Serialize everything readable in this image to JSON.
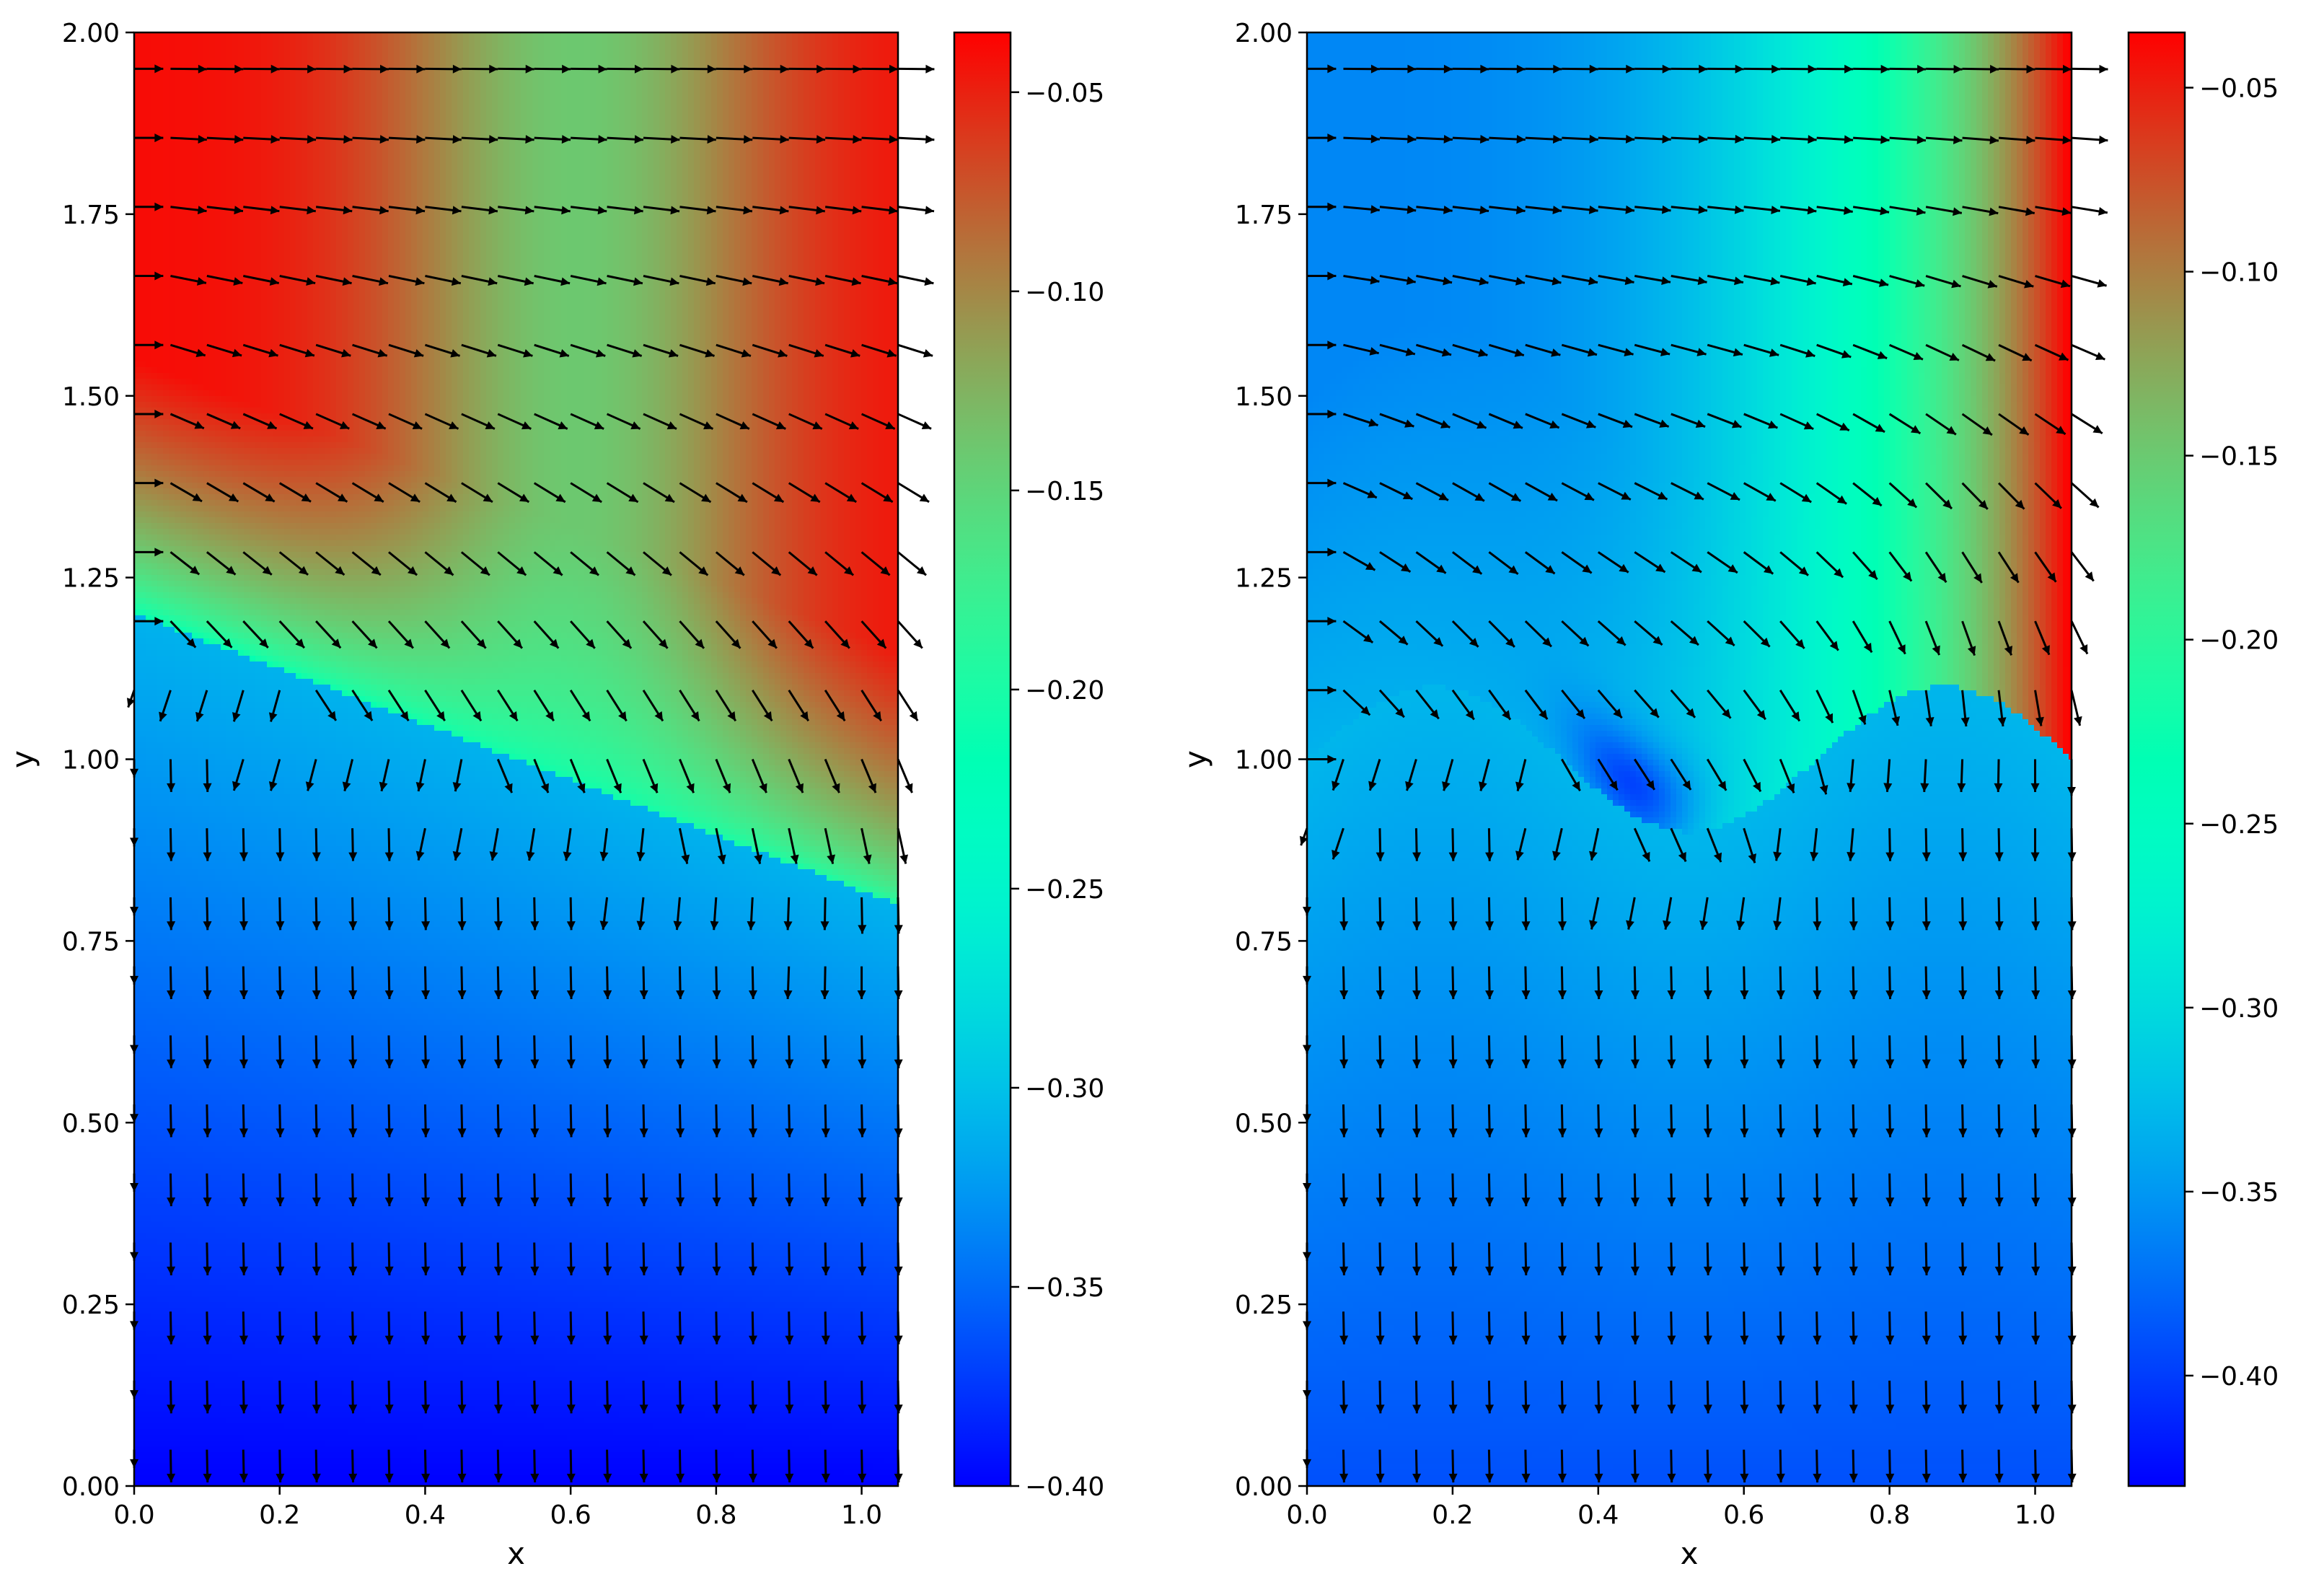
{
  "chart_data": [
    {
      "type": "heatmap",
      "title": "",
      "xlabel": "x",
      "ylabel": "y",
      "xlim": [
        0.0,
        1.05
      ],
      "ylim": [
        0.0,
        2.0
      ],
      "xticks": [
        "0.0",
        "0.2",
        "0.4",
        "0.6",
        "0.8",
        "1.0"
      ],
      "xtick_values": [
        0.0,
        0.2,
        0.4,
        0.6,
        0.8,
        1.0
      ],
      "yticks": [
        "0.00",
        "0.25",
        "0.50",
        "0.75",
        "1.00",
        "1.25",
        "1.50",
        "1.75",
        "2.00"
      ],
      "ytick_values": [
        0.0,
        0.25,
        0.5,
        0.75,
        1.0,
        1.25,
        1.5,
        1.75,
        2.0
      ],
      "colormap": "rainbow",
      "colorbar": {
        "range": [
          -0.4,
          -0.035
        ],
        "ticks": [
          "−0.05",
          "−0.10",
          "−0.15",
          "−0.20",
          "−0.25",
          "−0.30",
          "−0.35",
          "−0.40"
        ],
        "tick_values": [
          -0.05,
          -0.1,
          -0.15,
          -0.2,
          -0.25,
          -0.3,
          -0.35,
          -0.4
        ]
      },
      "interface": {
        "shape": "linear",
        "y_at_x0": 1.2,
        "y_at_xmax": 0.8
      },
      "field_description": "Lower fluid region: value increases linearly with y from -0.40 at y=0 to about -0.31 at interface. Upper region: high (-0.04) at top-left, about -0.14 in middle, -0.06 at right edge; green near interface.",
      "quiver": "Vectors point downward in lower region; in upper region near-horizontal rightward flow at top turning to down-right/downward approaching interface and right wall."
    },
    {
      "type": "heatmap",
      "title": "",
      "xlabel": "x",
      "ylabel": "y",
      "xlim": [
        0.0,
        1.05
      ],
      "ylim": [
        0.0,
        2.0
      ],
      "xticks": [
        "0.0",
        "0.2",
        "0.4",
        "0.6",
        "0.8",
        "1.0"
      ],
      "xtick_values": [
        0.0,
        0.2,
        0.4,
        0.6,
        0.8,
        1.0
      ],
      "yticks": [
        "0.00",
        "0.25",
        "0.50",
        "0.75",
        "1.00",
        "1.25",
        "1.50",
        "1.75",
        "2.00"
      ],
      "ytick_values": [
        0.0,
        0.25,
        0.5,
        0.75,
        1.0,
        1.25,
        1.5,
        1.75,
        2.0
      ],
      "colormap": "rainbow",
      "colorbar": {
        "range": [
          -0.43,
          -0.035
        ],
        "ticks": [
          "−0.05",
          "−0.10",
          "−0.15",
          "−0.20",
          "−0.25",
          "−0.30",
          "−0.35",
          "−0.40"
        ],
        "tick_values": [
          -0.05,
          -0.1,
          -0.15,
          -0.2,
          -0.25,
          -0.3,
          -0.35,
          -0.4
        ]
      },
      "interface": {
        "shape": "sinusoidal",
        "mean_y": 1.0,
        "amplitude": 0.1,
        "period": 0.7,
        "crest_x": 0.175
      },
      "field_description": "Lower fluid region: value increases with y from about -0.39 at y=0 to about -0.33 at interface. Upper region: blue (-0.35) on left rising to red (-0.04) at right wall; purple pocket near the interface trough around x=0.45.",
      "quiver": "Vectors point downward in lower region; in upper region horizontal rightward at top turning down-right near interface and right wall."
    }
  ]
}
